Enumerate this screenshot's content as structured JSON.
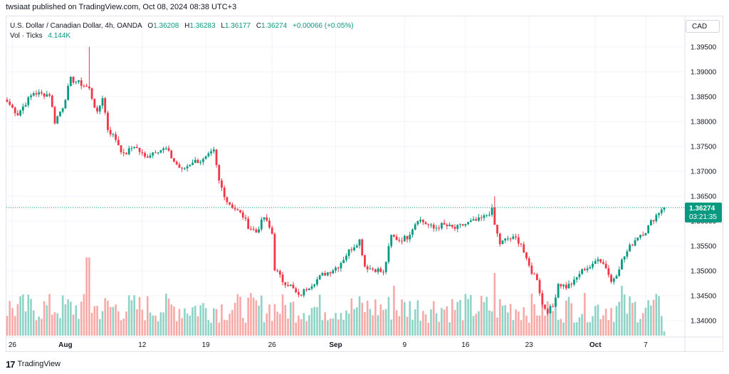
{
  "header": {
    "published": "twsiaat published on TradingView.com, Oct 08, 2024 08:38 UTC+3"
  },
  "legend": {
    "symbol": "U.S. Dollar / Canadian Dollar, 4h, OANDA",
    "o_label": "O",
    "o_value": "1.36208",
    "h_label": "H",
    "h_value": "1.36283",
    "l_label": "L",
    "l_value": "1.36177",
    "c_label": "C",
    "c_value": "1.36274",
    "change": "+0.00066 (+0.05%)",
    "vol_label": "Vol · Ticks",
    "vol_value": "4.144K"
  },
  "currency_button": "CAD",
  "footer": {
    "brand": "TradingView",
    "logo": "17"
  },
  "colors": {
    "up": "#089981",
    "down": "#f23645",
    "up_vol": "#8fd3c7",
    "down_vol": "#f7a9a7",
    "grid": "#f0f3fa"
  },
  "chart_data": {
    "type": "candlestick",
    "price_axis": {
      "ticks": [
        "1.39500",
        "1.39000",
        "1.38500",
        "1.38000",
        "1.37500",
        "1.37000",
        "1.36500",
        "1.36000",
        "1.35500",
        "1.35000",
        "1.34500",
        "1.34000"
      ],
      "range": [
        1.3367,
        1.4
      ]
    },
    "time_axis": {
      "labels": [
        "26",
        "Aug",
        "12",
        "19",
        "26",
        "Sep",
        "9",
        "16",
        "23",
        "Oct",
        "7"
      ],
      "bold": [
        "Aug",
        "Sep",
        "Oct"
      ]
    },
    "last_price": {
      "value": 1.36274,
      "label": "1.36274",
      "countdown": "03:21:35"
    },
    "close_path": [
      [
        0,
        1.384
      ],
      [
        4,
        1.3815
      ],
      [
        7,
        1.3838
      ],
      [
        10,
        1.3858
      ],
      [
        13,
        1.3855
      ],
      [
        16,
        1.3855
      ],
      [
        18,
        1.38
      ],
      [
        21,
        1.383
      ],
      [
        24,
        1.3885
      ],
      [
        27,
        1.3878
      ],
      [
        30,
        1.387
      ],
      [
        31,
        1.3865
      ],
      [
        34,
        1.3815
      ],
      [
        36,
        1.385
      ],
      [
        38,
        1.3785
      ],
      [
        41,
        1.3765
      ],
      [
        44,
        1.3732
      ],
      [
        48,
        1.3752
      ],
      [
        52,
        1.3728
      ],
      [
        56,
        1.3742
      ],
      [
        60,
        1.3745
      ],
      [
        63,
        1.372
      ],
      [
        66,
        1.3702
      ],
      [
        70,
        1.372
      ],
      [
        74,
        1.3722
      ],
      [
        78,
        1.374
      ],
      [
        80,
        1.368
      ],
      [
        83,
        1.364
      ],
      [
        86,
        1.3625
      ],
      [
        89,
        1.361
      ],
      [
        91,
        1.359
      ],
      [
        94,
        1.3578
      ],
      [
        97,
        1.3608
      ],
      [
        100,
        1.3575
      ],
      [
        101,
        1.3505
      ],
      [
        104,
        1.348
      ],
      [
        107,
        1.347
      ],
      [
        110,
        1.3448
      ],
      [
        113,
        1.3465
      ],
      [
        116,
        1.3478
      ],
      [
        119,
        1.3492
      ],
      [
        122,
        1.35
      ],
      [
        125,
        1.351
      ],
      [
        129,
        1.354
      ],
      [
        133,
        1.3562
      ],
      [
        135,
        1.351
      ],
      [
        137,
        1.3505
      ],
      [
        140,
        1.3502
      ],
      [
        142,
        1.3495
      ],
      [
        145,
        1.357
      ],
      [
        148,
        1.3562
      ],
      [
        151,
        1.3568
      ],
      [
        155,
        1.3605
      ],
      [
        158,
        1.3595
      ],
      [
        161,
        1.3585
      ],
      [
        164,
        1.3592
      ],
      [
        166,
        1.359
      ],
      [
        169,
        1.3585
      ],
      [
        172,
        1.3592
      ],
      [
        175,
        1.3598
      ],
      [
        178,
        1.3602
      ],
      [
        180,
        1.3608
      ],
      [
        183,
        1.3622
      ],
      [
        184,
        1.3592
      ],
      [
        186,
        1.3555
      ],
      [
        189,
        1.3565
      ],
      [
        192,
        1.3565
      ],
      [
        194,
        1.3555
      ],
      [
        196,
        1.352
      ],
      [
        198,
        1.3498
      ],
      [
        200,
        1.3485
      ],
      [
        202,
        1.3432
      ],
      [
        204,
        1.342
      ],
      [
        206,
        1.3428
      ],
      [
        208,
        1.3475
      ],
      [
        211,
        1.3468
      ],
      [
        214,
        1.3478
      ],
      [
        216,
        1.3495
      ],
      [
        218,
        1.3505
      ],
      [
        221,
        1.351
      ],
      [
        223,
        1.3528
      ],
      [
        226,
        1.3508
      ],
      [
        228,
        1.3478
      ],
      [
        230,
        1.3495
      ],
      [
        232,
        1.352
      ],
      [
        235,
        1.3548
      ],
      [
        238,
        1.357
      ],
      [
        241,
        1.358
      ],
      [
        243,
        1.3598
      ],
      [
        245,
        1.3612
      ],
      [
        247,
        1.3625
      ],
      [
        248,
        1.36274
      ]
    ]
  }
}
